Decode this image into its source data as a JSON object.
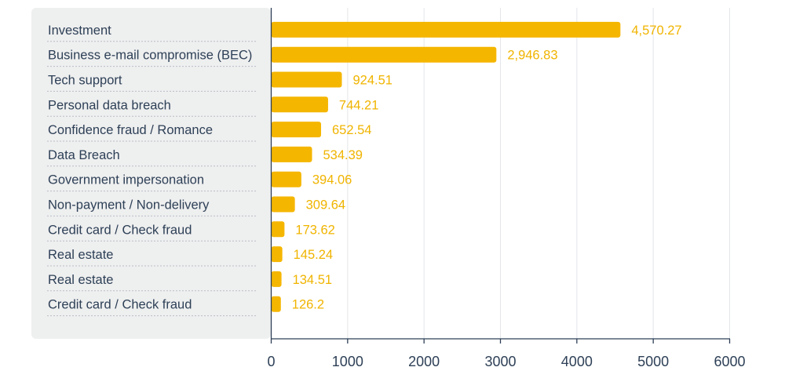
{
  "chart_data": {
    "type": "bar",
    "orientation": "horizontal",
    "categories": [
      "Investment",
      "Business e-mail compromise (BEC)",
      "Tech support",
      "Personal data breach",
      "Confidence fraud / Romance",
      "Data Breach",
      "Government impersonation",
      "Non-payment / Non-delivery",
      "Credit card / Check fraud",
      "Real estate",
      "Real estate",
      "Credit card / Check fraud"
    ],
    "values": [
      4570.27,
      2946.83,
      924.51,
      744.21,
      652.54,
      534.39,
      394.06,
      309.64,
      173.62,
      145.24,
      134.51,
      126.2
    ],
    "value_labels": [
      "4,570.27",
      "2,946.83",
      "924.51",
      "744.21",
      "652.54",
      "534.39",
      "394.06",
      "309.64",
      "173.62",
      "145.24",
      "134.51",
      "126.2"
    ],
    "x_ticks": [
      "0",
      "1000",
      "2000",
      "3000",
      "4000",
      "5000",
      "6000"
    ],
    "xlim": [
      0,
      6000
    ],
    "grid": true,
    "colors": {
      "bar": "#f5b600",
      "value_label": "#f0b400",
      "category_label": "#2e4057",
      "label_panel": "#eeefef",
      "grid": "#e4e6ea",
      "axis": "#2e4057"
    }
  }
}
